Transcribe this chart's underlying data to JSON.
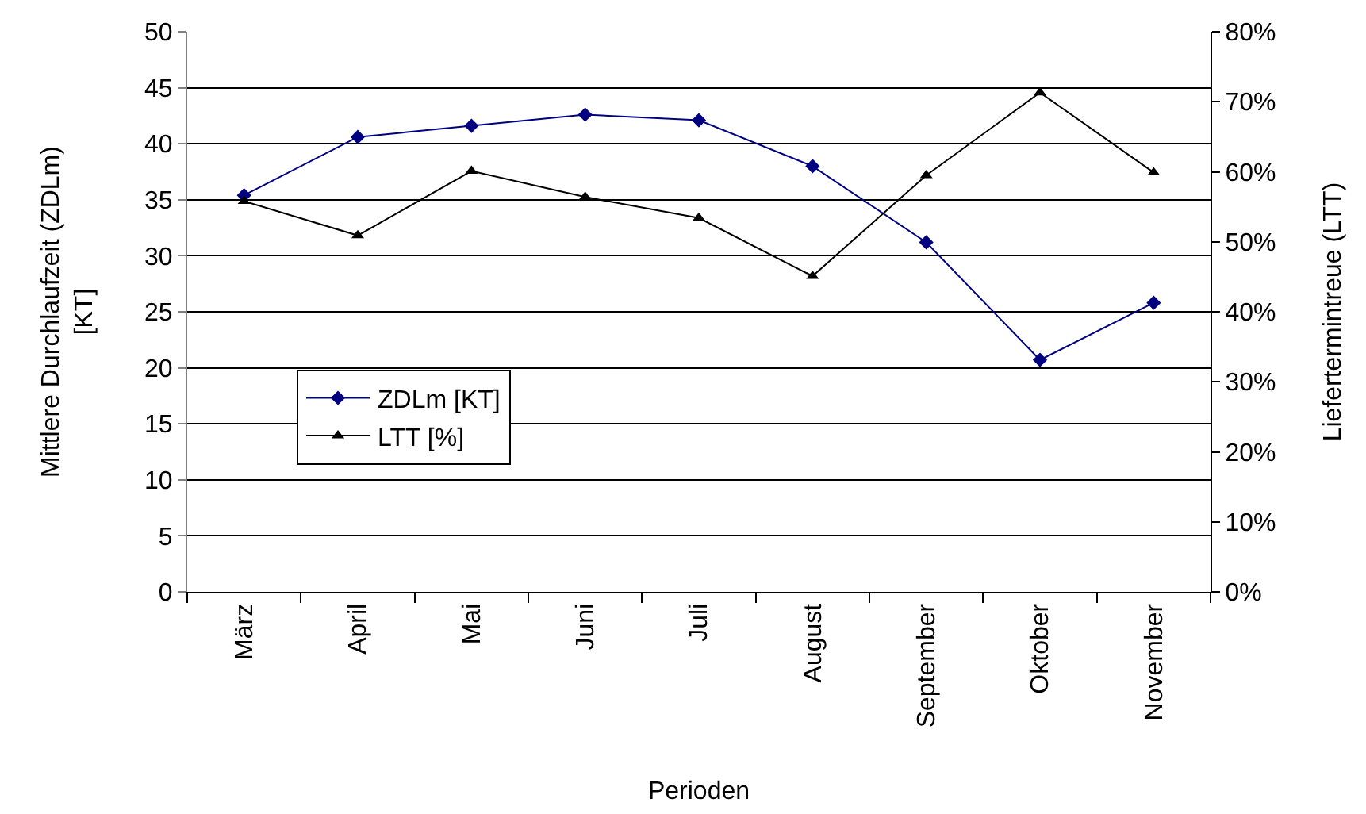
{
  "chart_data": {
    "type": "line",
    "xlabel": "Perioden",
    "ylabel": "Mittlere Durchlaufzeit (ZDLm)\n[KT]",
    "y2label": "Liefertermintreue (LTT)",
    "categories": [
      "März",
      "April",
      "Mai",
      "Juni",
      "Juli",
      "August",
      "September",
      "Oktober",
      "November"
    ],
    "series": [
      {
        "name": "ZDLm [KT]",
        "color": "#000080",
        "marker": "diamond",
        "values": [
          35.4,
          40.6,
          41.6,
          42.6,
          42.1,
          38.0,
          31.2,
          20.7,
          25.8
        ]
      },
      {
        "name": "LTT [%]",
        "color": "#000000",
        "marker": "triangle",
        "axis": "y2",
        "values": [
          55.8,
          50.9,
          60.1,
          56.4,
          53.4,
          45.1,
          59.5,
          71.3,
          59.9
        ]
      }
    ],
    "ylim": [
      0,
      50
    ],
    "yticks": [
      0,
      5,
      10,
      15,
      20,
      25,
      30,
      35,
      40,
      45,
      50
    ],
    "y2lim": [
      0,
      80
    ],
    "y2ticks": [
      {
        "value": 0,
        "label": "0%"
      },
      {
        "value": 10,
        "label": "10%"
      },
      {
        "value": 20,
        "label": "20%"
      },
      {
        "value": 30,
        "label": "30%"
      },
      {
        "value": 40,
        "label": "40%"
      },
      {
        "value": 50,
        "label": "50%"
      },
      {
        "value": 60,
        "label": "60%"
      },
      {
        "value": 70,
        "label": "70%"
      },
      {
        "value": 80,
        "label": "80%"
      }
    ],
    "grid": "y",
    "legend": "left",
    "line_style": "solid"
  }
}
